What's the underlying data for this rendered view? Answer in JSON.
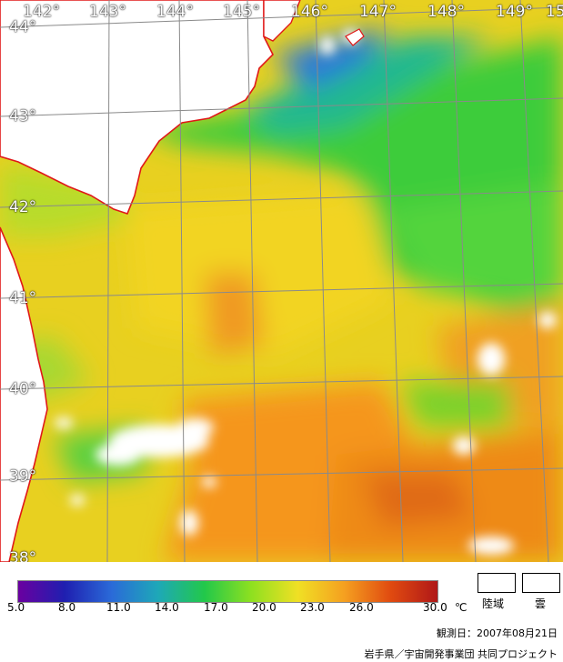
{
  "map": {
    "longitude_labels": [
      "142°",
      "143°",
      "144°",
      "145°",
      "146°",
      "147°",
      "148°",
      "149°",
      "15"
    ],
    "latitude_labels": [
      "44°",
      "43°",
      "42°",
      "41°",
      "40°",
      "39°",
      "38°"
    ]
  },
  "legend": {
    "scale_ticks": [
      "5.0",
      "8.0",
      "11.0",
      "14.0",
      "17.0",
      "20.0",
      "23.0",
      "26.0",
      "30.0"
    ],
    "unit": "℃",
    "land_label": "陸域",
    "cloud_label": "雲",
    "colors": [
      "#6a00a0",
      "#1f1fb0",
      "#2a6ad8",
      "#1ea8b8",
      "#22c84a",
      "#8ee020",
      "#f0e024",
      "#f5a020",
      "#e04a10",
      "#b01818"
    ]
  },
  "observation_date": "観測日：2007年08月21日",
  "credit": "岩手県／宇宙開発事業団 共同プロジェクト"
}
